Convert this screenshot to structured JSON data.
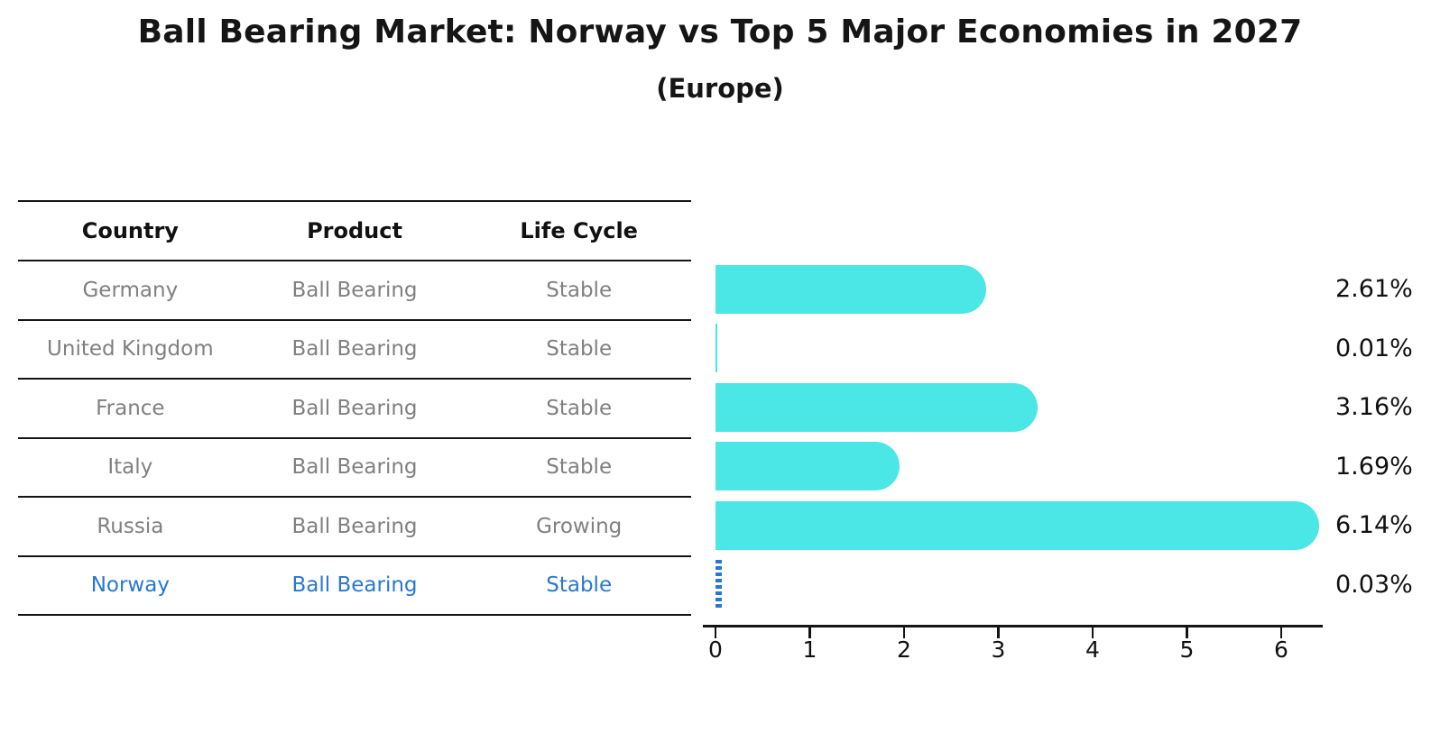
{
  "header": {
    "title": "Ball Bearing Market: Norway vs Top 5 Major Economies in 2027",
    "subtitle": "(Europe)"
  },
  "table": {
    "headers": [
      "Country",
      "Product",
      "Life Cycle"
    ],
    "rows": [
      {
        "country": "Germany",
        "product": "Ball Bearing",
        "life_cycle": "Stable",
        "highlight": false
      },
      {
        "country": "United Kingdom",
        "product": "Ball Bearing",
        "life_cycle": "Stable",
        "highlight": false
      },
      {
        "country": "France",
        "product": "Ball Bearing",
        "life_cycle": "Stable",
        "highlight": false
      },
      {
        "country": "Italy",
        "product": "Ball Bearing",
        "life_cycle": "Stable",
        "highlight": false
      },
      {
        "country": "Russia",
        "product": "Ball Bearing",
        "life_cycle": "Growing",
        "highlight": false
      },
      {
        "country": "Norway",
        "product": "Ball Bearing",
        "life_cycle": "Stable",
        "highlight": true
      }
    ]
  },
  "chart_data": {
    "type": "bar",
    "orientation": "horizontal",
    "title": "Ball Bearing Market: Norway vs Top 5 Major Economies in 2027",
    "subtitle": "(Europe)",
    "categories": [
      "Germany",
      "United Kingdom",
      "France",
      "Italy",
      "Russia",
      "Norway"
    ],
    "values": [
      2.61,
      0.01,
      3.16,
      1.69,
      6.14,
      0.03
    ],
    "value_labels": [
      "2.61%",
      "0.01%",
      "3.16%",
      "1.69%",
      "6.14%",
      "0.03%"
    ],
    "xlabel": "",
    "ylabel": "",
    "xlim": [
      0,
      6.45
    ],
    "xticks": [
      0,
      1,
      2,
      3,
      4,
      5,
      6
    ],
    "grid": false,
    "legend": false,
    "highlight_index": 5,
    "highlight_style": "dotted-outline"
  },
  "colors": {
    "bar": "#4be6e6",
    "highlight": "#2878cf",
    "muted_text": "#808080",
    "dark_text": "#111111",
    "axis": "#141414",
    "background": "#ffffff"
  }
}
